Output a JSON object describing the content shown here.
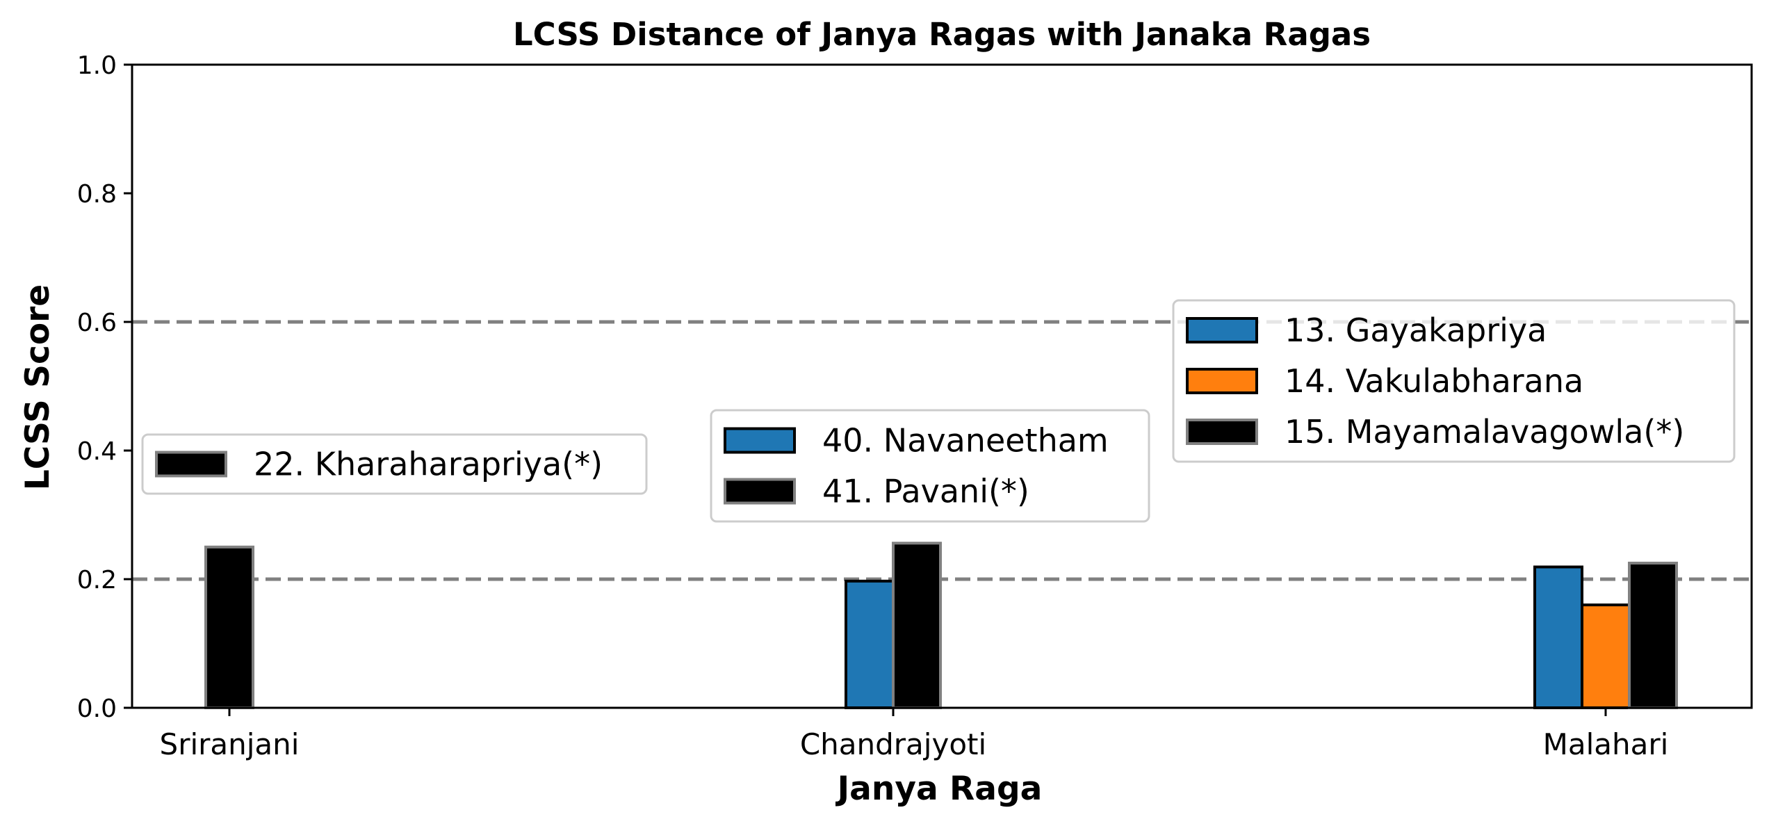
{
  "chart_data": {
    "type": "bar",
    "title": "LCSS Distance of Janya Ragas with Janaka Ragas",
    "xlabel": "Janya Raga",
    "ylabel": "LCSS Score",
    "ylim": [
      0,
      1.0
    ],
    "yticks": [
      "0.0",
      "0.2",
      "0.4",
      "0.6",
      "0.8",
      "1.0"
    ],
    "reference_lines": [
      0.2,
      0.6
    ],
    "colors": {
      "blue": "#1f77b4",
      "orange": "#ff7f0e",
      "black": "#000000",
      "reference_line": "#808080"
    },
    "groups": [
      {
        "category": "Sriranjani",
        "legend_position": "center-left",
        "bars": [
          {
            "name": "22. Kharaharapriya(*)",
            "value": 0.25,
            "color": "black",
            "edge": "gray"
          }
        ]
      },
      {
        "category": "Chandrajyoti",
        "legend_position": "center",
        "bars": [
          {
            "name": "40. Navaneetham",
            "value": 0.197,
            "color": "blue",
            "edge": "black"
          },
          {
            "name": "41. Pavani(*)",
            "value": 0.256,
            "color": "black",
            "edge": "gray"
          }
        ]
      },
      {
        "category": "Malahari",
        "legend_position": "center-right",
        "bars": [
          {
            "name": "13. Gayakapriya",
            "value": 0.219,
            "color": "blue",
            "edge": "black"
          },
          {
            "name": "14. Vakulabharana",
            "value": 0.16,
            "color": "orange",
            "edge": "black"
          },
          {
            "name": "15. Mayamalavagowla(*)",
            "value": 0.225,
            "color": "black",
            "edge": "gray"
          }
        ]
      }
    ]
  }
}
